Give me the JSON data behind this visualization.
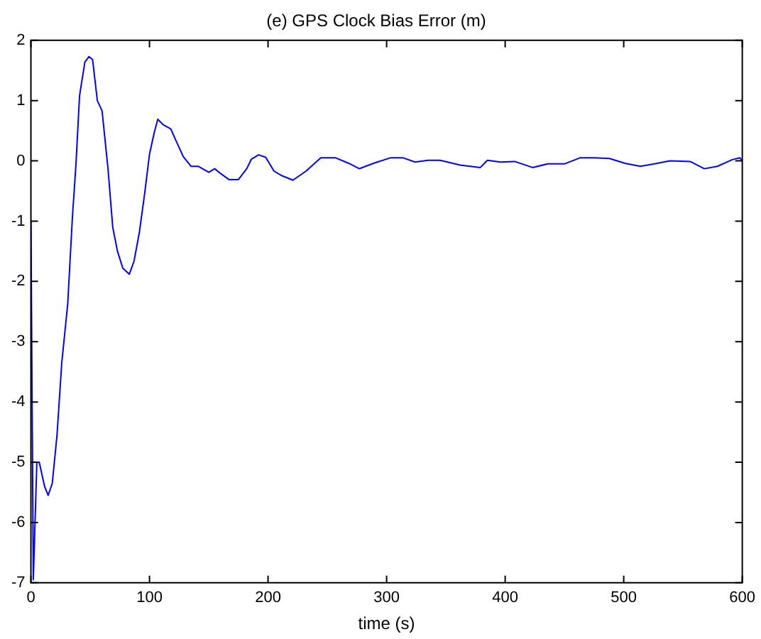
{
  "chart_data": {
    "type": "line",
    "title": "(e) GPS Clock Bias Error (m)",
    "xlabel": "time (s)",
    "xlim": [
      0,
      600
    ],
    "xticks": [
      0,
      100,
      200,
      300,
      400,
      500,
      600
    ],
    "ylim": [
      -7,
      2
    ],
    "yticks": [
      -7,
      -6,
      -5,
      -4,
      -3,
      -2,
      -1,
      0,
      1,
      2
    ],
    "grid": false,
    "legend": false,
    "marker": "none",
    "line_style": "solid",
    "series": [
      {
        "color": "#0000ff",
        "x": [
          0,
          2,
          5,
          7,
          11.5,
          14.5,
          18,
          22,
          26,
          31,
          35,
          38,
          41,
          45.5,
          49,
          52,
          56,
          60,
          65,
          69,
          73,
          77.5,
          83,
          87,
          91.5,
          96,
          100,
          104,
          107,
          111.5,
          118,
          122,
          128.5,
          135,
          141,
          150,
          155,
          160,
          167,
          175,
          182,
          186,
          192,
          198,
          205,
          211,
          221,
          232,
          244.5,
          257,
          268,
          277,
          289,
          303,
          314,
          324,
          335,
          345,
          362,
          379,
          385,
          396,
          408,
          423,
          436,
          450,
          463,
          475.5,
          488,
          501,
          514,
          526,
          539,
          556,
          568,
          579,
          591.5,
          598,
          600
        ],
        "values": [
          -1,
          -6.95,
          -5,
          -5,
          -5.4,
          -5.55,
          -5.35,
          -4.55,
          -3.35,
          -2.38,
          -0.93,
          -0.05,
          1.08,
          1.64,
          1.73,
          1.68,
          1,
          0.83,
          -0.13,
          -1.1,
          -1.5,
          -1.78,
          -1.88,
          -1.66,
          -1.18,
          -0.53,
          0.11,
          0.47,
          0.69,
          0.6,
          0.53,
          0.35,
          0.07,
          -0.09,
          -0.09,
          -0.19,
          -0.13,
          -0.21,
          -0.31,
          -0.31,
          -0.13,
          0.03,
          0.1,
          0.06,
          -0.17,
          -0.24,
          -0.32,
          -0.17,
          0.05,
          0.05,
          -0.04,
          -0.13,
          -0.04,
          0.05,
          0.05,
          -0.02,
          0.01,
          0.01,
          -0.07,
          -0.11,
          0.01,
          -0.02,
          -0.01,
          -0.11,
          -0.05,
          -0.05,
          0.05,
          0.05,
          0.04,
          -0.04,
          -0.09,
          -0.05,
          0,
          -0.01,
          -0.13,
          -0.09,
          0.02,
          0.05,
          0
        ]
      }
    ]
  }
}
